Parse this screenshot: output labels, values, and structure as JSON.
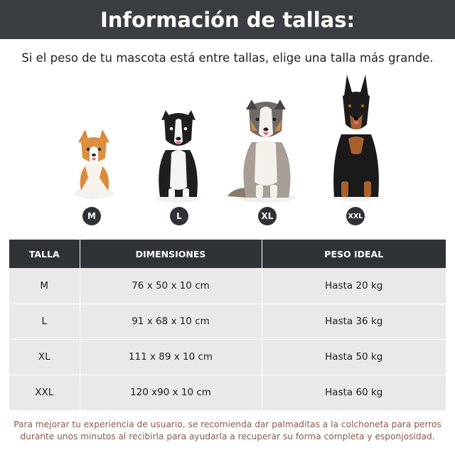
{
  "title": "Información de tallas:",
  "subtitle": "Si el peso de tu mascota está entre tallas, elige una talla más grande.",
  "sizes": {
    "m": "M",
    "l": "L",
    "xl": "XL",
    "xxl": "XXL"
  },
  "table": {
    "headers": [
      "TALLA",
      "DIMENSIONES",
      "PESO IDEAL"
    ],
    "rows": [
      [
        "M",
        "76 x 50 x 10 cm",
        "Hasta 20 kg"
      ],
      [
        "L",
        "91 x 68 x 10 cm",
        "Hasta 36 kg"
      ],
      [
        "XL",
        "111 x 89 x 10 cm",
        "Hasta 50 kg"
      ],
      [
        "XXL",
        "120 x90 x 10 cm",
        "Hasta 60 kg"
      ]
    ]
  },
  "footer": "Para mejorar tu experiencia de usuario, se recomienda dar palmaditas a la colchoneta para perros durante unos minutos al recibirla para ayudarla a recuperar su forma completa y esponjosidad.",
  "colors": {
    "header_bg": "#3a3d42",
    "table_header_bg": "#2f3236",
    "table_cell_bg": "#e9e9e9",
    "footer_text": "#8a5a48"
  }
}
